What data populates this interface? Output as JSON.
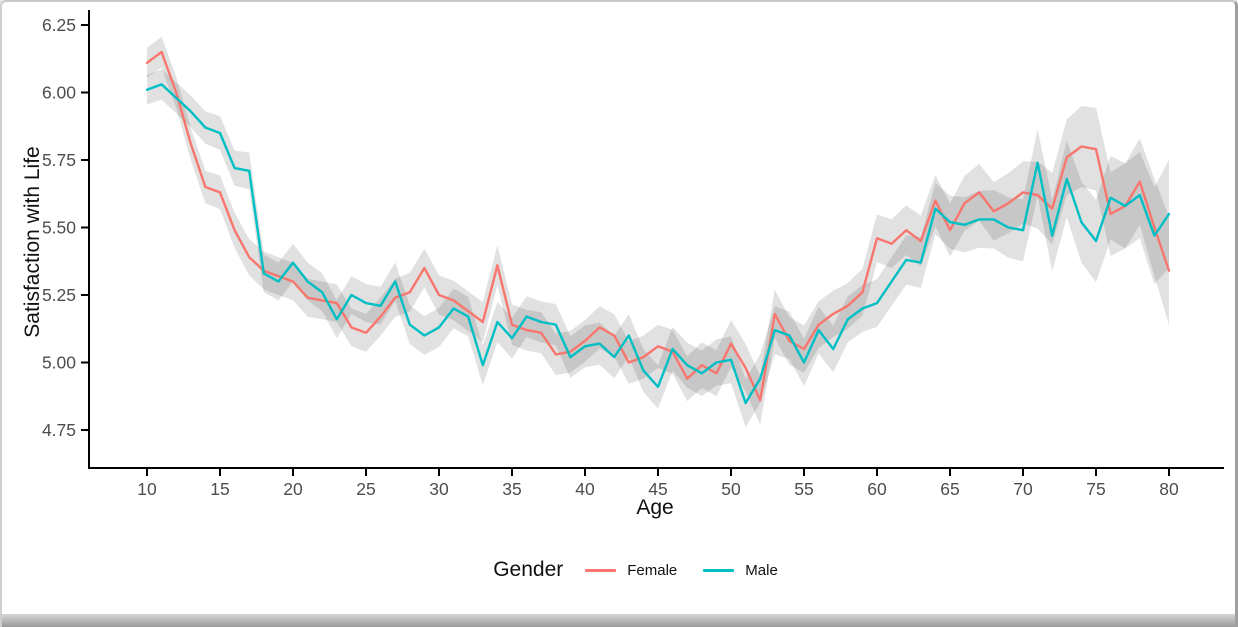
{
  "chart_data": {
    "type": "line",
    "title": "",
    "xlabel": "Age",
    "ylabel": "Satisfaction with Life",
    "legend": {
      "title": "Gender",
      "position": "bottom-center"
    },
    "grid": false,
    "background": "#ffffff",
    "axis_color": "#000000",
    "tick_text_color": "#4d4d4d",
    "ribbon_color": "rgba(70,70,70,0.16)",
    "xlim": [
      6,
      83.8
    ],
    "ylim": [
      4.6,
      6.3
    ],
    "x_ticks": [
      10,
      15,
      20,
      25,
      30,
      35,
      40,
      45,
      50,
      55,
      60,
      65,
      70,
      75,
      80
    ],
    "y_ticks": [
      4.75,
      5.0,
      5.25,
      5.5,
      5.75,
      6.0,
      6.25
    ],
    "y_tick_labels": [
      "4.75",
      "5.00",
      "5.25",
      "5.50",
      "5.75",
      "6.00",
      "6.25"
    ],
    "x": [
      10,
      11,
      12,
      13,
      14,
      15,
      16,
      17,
      18,
      19,
      20,
      21,
      22,
      23,
      24,
      25,
      26,
      27,
      28,
      29,
      30,
      31,
      32,
      33,
      34,
      35,
      36,
      37,
      38,
      39,
      40,
      41,
      42,
      43,
      44,
      45,
      46,
      47,
      48,
      49,
      50,
      51,
      52,
      53,
      54,
      55,
      56,
      57,
      58,
      59,
      60,
      61,
      62,
      63,
      64,
      65,
      66,
      67,
      68,
      69,
      70,
      71,
      72,
      73,
      74,
      75,
      76,
      77,
      78,
      79,
      80
    ],
    "series": [
      {
        "name": "Female",
        "color": "#F8766D",
        "values": [
          6.11,
          6.15,
          6.0,
          5.81,
          5.65,
          5.63,
          5.49,
          5.39,
          5.34,
          5.32,
          5.3,
          5.24,
          5.23,
          5.22,
          5.13,
          5.11,
          5.17,
          5.24,
          5.26,
          5.35,
          5.25,
          5.23,
          5.19,
          5.15,
          5.36,
          5.14,
          5.12,
          5.11,
          5.03,
          5.04,
          5.08,
          5.13,
          5.1,
          5.0,
          5.02,
          5.06,
          5.04,
          4.94,
          4.99,
          4.96,
          5.07,
          4.98,
          4.86,
          5.18,
          5.08,
          5.05,
          5.14,
          5.18,
          5.21,
          5.26,
          5.46,
          5.44,
          5.49,
          5.45,
          5.6,
          5.49,
          5.59,
          5.63,
          5.56,
          5.59,
          5.63,
          5.62,
          5.57,
          5.76,
          5.8,
          5.79,
          5.55,
          5.58,
          5.67,
          5.5,
          5.34
        ]
      },
      {
        "name": "Male",
        "color": "#00BFC4",
        "values": [
          6.01,
          6.03,
          5.98,
          5.93,
          5.87,
          5.85,
          5.72,
          5.71,
          5.33,
          5.3,
          5.37,
          5.3,
          5.26,
          5.16,
          5.25,
          5.22,
          5.21,
          5.3,
          5.14,
          5.1,
          5.13,
          5.2,
          5.17,
          4.99,
          5.15,
          5.09,
          5.17,
          5.15,
          5.14,
          5.02,
          5.06,
          5.07,
          5.02,
          5.1,
          4.97,
          4.91,
          5.05,
          4.99,
          4.96,
          5.0,
          5.01,
          4.85,
          4.94,
          5.12,
          5.1,
          5.0,
          5.12,
          5.05,
          5.16,
          5.2,
          5.22,
          5.3,
          5.38,
          5.37,
          5.57,
          5.52,
          5.51,
          5.53,
          5.53,
          5.5,
          5.49,
          5.74,
          5.47,
          5.68,
          5.52,
          5.45,
          5.61,
          5.58,
          5.62,
          5.47,
          5.55
        ]
      }
    ],
    "ribbon": {
      "description": "shaded confidence band half-width around each line, interpolated between anchor ages",
      "anchor_ages": [
        10,
        14,
        18,
        25,
        35,
        45,
        52,
        58,
        64,
        70,
        74,
        78,
        80
      ],
      "halfwidths": [
        0.055,
        0.06,
        0.07,
        0.07,
        0.075,
        0.08,
        0.09,
        0.085,
        0.095,
        0.115,
        0.15,
        0.16,
        0.2
      ]
    }
  }
}
